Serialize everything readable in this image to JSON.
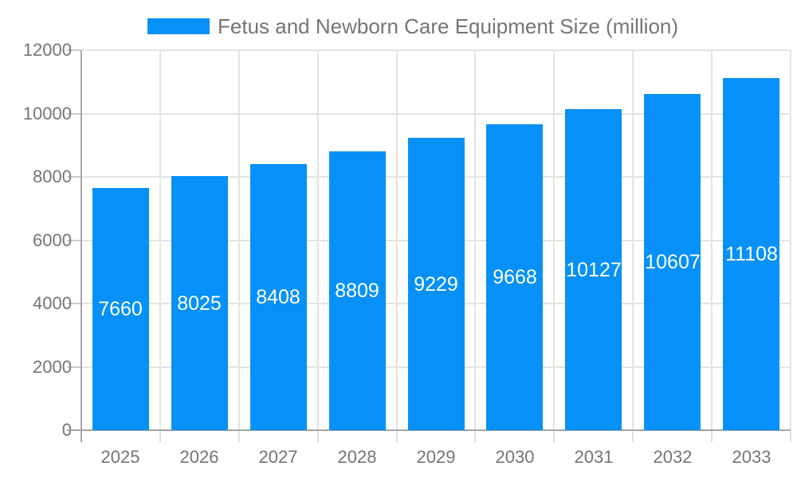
{
  "legend": {
    "label": "Fetus and Newborn Care Equipment Size (million)"
  },
  "chart_data": {
    "type": "bar",
    "title": "Fetus and Newborn Care Equipment Size (million)",
    "categories": [
      "2025",
      "2026",
      "2027",
      "2028",
      "2029",
      "2030",
      "2031",
      "2032",
      "2033"
    ],
    "series": [
      {
        "name": "Fetus and Newborn Care Equipment Size (million)",
        "values": [
          7660,
          8025,
          8408,
          8809,
          9229,
          9668,
          10127,
          10607,
          11108
        ]
      }
    ],
    "xlabel": "",
    "ylabel": "",
    "ylim": [
      0,
      12000
    ],
    "yticks": [
      0,
      2000,
      4000,
      6000,
      8000,
      10000,
      12000
    ],
    "grid": true,
    "legend_position": "top",
    "value_labels": "inside-center"
  },
  "colors": {
    "bar": "#0591f7",
    "grid": "#e4e4e4",
    "axis": "#a5a5a5",
    "tick": "#cccccc",
    "x_tick": "#e0e0e0",
    "text": "#757575",
    "value_label": "#ffffff",
    "background": "#ffffff"
  }
}
